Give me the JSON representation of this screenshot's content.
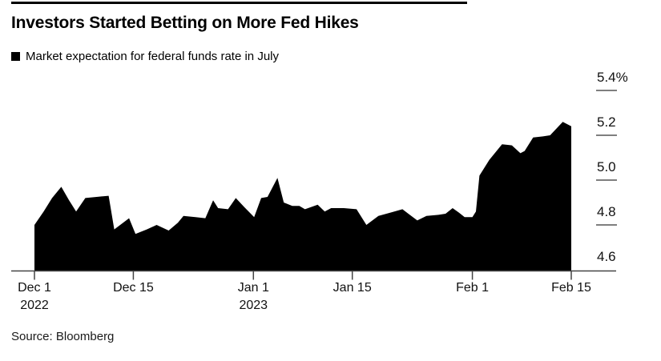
{
  "header": {
    "title": "Investors Started Betting on More Fed Hikes",
    "legend_label": "Market expectation for federal funds rate in July"
  },
  "footer": {
    "source": "Source: Bloomberg"
  },
  "colors": {
    "series_fill": "#000000",
    "axis": "#444444",
    "tick_dash": "#555555",
    "label_text": "#111111",
    "background": "#ffffff"
  },
  "chart_data": {
    "type": "area",
    "title": "Investors Started Betting on More Fed Hikes",
    "series_name": "Market expectation for federal funds rate in July",
    "unit": "%",
    "grid": "off",
    "legend_position": "top-left",
    "x_axis": {
      "range_days": [
        0,
        76
      ],
      "ticks": [
        {
          "day": 0,
          "label": "Dec 1",
          "sublabel": "2022"
        },
        {
          "day": 14,
          "label": "Dec 15",
          "sublabel": ""
        },
        {
          "day": 31,
          "label": "Jan 1",
          "sublabel": "2023"
        },
        {
          "day": 45,
          "label": "Jan 15",
          "sublabel": ""
        },
        {
          "day": 62,
          "label": "Feb 1",
          "sublabel": ""
        },
        {
          "day": 76,
          "label": "Feb 15",
          "sublabel": ""
        }
      ]
    },
    "y_axis": {
      "range": [
        4.6,
        5.4
      ],
      "baseline": 4.6,
      "ticks": [
        {
          "value": 5.4,
          "label": "5.4%"
        },
        {
          "value": 5.2,
          "label": "5.2"
        },
        {
          "value": 5.0,
          "label": "5.0"
        },
        {
          "value": 4.8,
          "label": "4.8"
        },
        {
          "value": 4.6,
          "label": "4.6"
        }
      ]
    },
    "points": [
      [
        0,
        4.8
      ],
      [
        1.3,
        4.86
      ],
      [
        2.5,
        4.92
      ],
      [
        3.8,
        4.97
      ],
      [
        4.9,
        4.91
      ],
      [
        5.9,
        4.86
      ],
      [
        7.2,
        4.92
      ],
      [
        8.8,
        4.925
      ],
      [
        10.5,
        4.93
      ],
      [
        11.3,
        4.78
      ],
      [
        13.4,
        4.83
      ],
      [
        14.3,
        4.76
      ],
      [
        15.9,
        4.78
      ],
      [
        17.3,
        4.8
      ],
      [
        19.0,
        4.775
      ],
      [
        20.3,
        4.81
      ],
      [
        21.1,
        4.84
      ],
      [
        22.8,
        4.835
      ],
      [
        24.2,
        4.83
      ],
      [
        25.3,
        4.91
      ],
      [
        26.0,
        4.875
      ],
      [
        27.4,
        4.87
      ],
      [
        28.5,
        4.92
      ],
      [
        29.7,
        4.88
      ],
      [
        31.1,
        4.835
      ],
      [
        32.1,
        4.92
      ],
      [
        33.0,
        4.925
      ],
      [
        34.4,
        5.01
      ],
      [
        35.3,
        4.9
      ],
      [
        36.5,
        4.885
      ],
      [
        37.5,
        4.885
      ],
      [
        38.3,
        4.87
      ],
      [
        40.1,
        4.89
      ],
      [
        41.1,
        4.86
      ],
      [
        42.0,
        4.875
      ],
      [
        43.8,
        4.875
      ],
      [
        45.6,
        4.87
      ],
      [
        47.0,
        4.8
      ],
      [
        48.7,
        4.84
      ],
      [
        50.4,
        4.855
      ],
      [
        52.1,
        4.87
      ],
      [
        54.2,
        4.82
      ],
      [
        55.5,
        4.84
      ],
      [
        57.2,
        4.845
      ],
      [
        58.2,
        4.85
      ],
      [
        59.2,
        4.875
      ],
      [
        60.1,
        4.855
      ],
      [
        60.9,
        4.835
      ],
      [
        62.0,
        4.835
      ],
      [
        62.5,
        4.86
      ],
      [
        63.0,
        5.02
      ],
      [
        64.4,
        5.09
      ],
      [
        66.2,
        5.16
      ],
      [
        67.6,
        5.155
      ],
      [
        68.8,
        5.12
      ],
      [
        69.4,
        5.13
      ],
      [
        70.6,
        5.19
      ],
      [
        72.0,
        5.195
      ],
      [
        73.0,
        5.2
      ],
      [
        74.8,
        5.26
      ],
      [
        76,
        5.24
      ]
    ]
  }
}
